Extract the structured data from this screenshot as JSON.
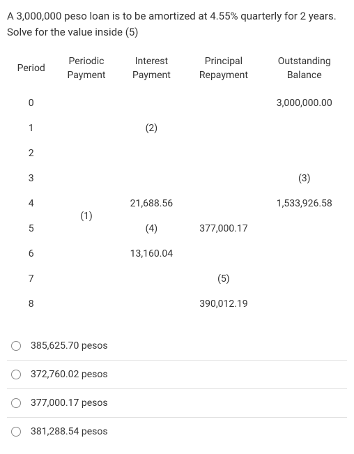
{
  "question_text": "A 3,000,000 peso loan is to be amortized at 4.55% quarterly for 2 years. Solve for the value inside (5)",
  "headers": {
    "period": "Period",
    "periodic_payment_l1": "Periodic",
    "periodic_payment_l2": "Payment",
    "interest_l1": "Interest",
    "interest_l2": "Payment",
    "principal_l1": "Principal",
    "principal_l2": "Repayment",
    "outstanding_l1": "Outstanding",
    "outstanding_l2": "Balance"
  },
  "rows": {
    "r0": {
      "period": "0",
      "periodic": "",
      "interest": "",
      "principal": "",
      "balance": "3,000,000.00"
    },
    "r1": {
      "period": "1",
      "periodic": "",
      "interest": "(2)",
      "principal": "",
      "balance": ""
    },
    "r2": {
      "period": "2",
      "periodic": "",
      "interest": "",
      "principal": "",
      "balance": ""
    },
    "r3": {
      "period": "3",
      "periodic": "",
      "interest": "",
      "principal": "",
      "balance": "(3)"
    },
    "r4": {
      "period": "4",
      "periodic": "",
      "interest": "21,688.56",
      "principal": "",
      "balance": "1,533,926.58"
    },
    "r5": {
      "period": "5",
      "periodic": "(1)",
      "interest": "(4)",
      "principal": "377,000.17",
      "balance": ""
    },
    "r6": {
      "period": "6",
      "periodic": "",
      "interest": "13,160.04",
      "principal": "",
      "balance": ""
    },
    "r7": {
      "period": "7",
      "periodic": "",
      "interest": "",
      "principal": "(5)",
      "balance": ""
    },
    "r8": {
      "period": "8",
      "periodic": "",
      "interest": "",
      "principal": "390,012.19",
      "balance": ""
    }
  },
  "periodic_span_value": "(1)",
  "options": {
    "a": "385,625.70 pesos",
    "b": "372,760.02 pesos",
    "c": "377,000.17 pesos",
    "d": "381,288.54 pesos"
  }
}
